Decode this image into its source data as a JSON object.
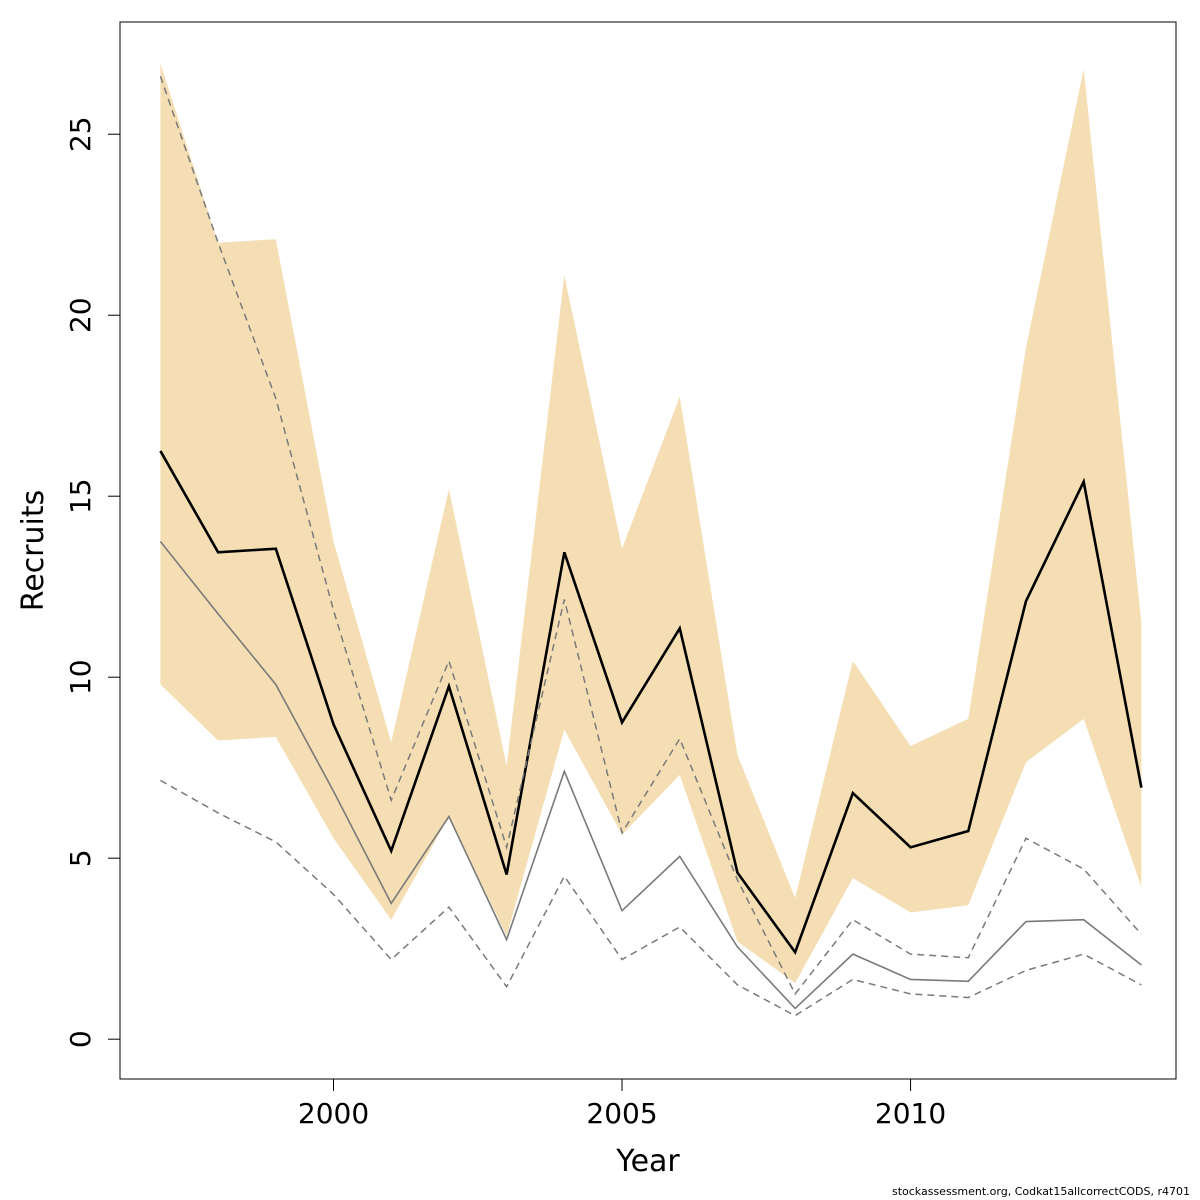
{
  "chart_data": {
    "type": "line",
    "xlabel": "Year",
    "ylabel": "Recruits",
    "xlim": [
      1996.3,
      2014.6
    ],
    "ylim": [
      -1.1,
      28.1
    ],
    "x_ticks": [
      2000,
      2005,
      2010
    ],
    "y_ticks": [
      0,
      5,
      10,
      15,
      20,
      25
    ],
    "grid": false,
    "band_color": "#f5deb3",
    "x": [
      1997,
      1998,
      1999,
      2000,
      2001,
      2002,
      2003,
      2004,
      2005,
      2006,
      2007,
      2008,
      2009,
      2010,
      2011,
      2012,
      2013,
      2014
    ],
    "series": [
      {
        "style": "band",
        "color": "#f5deb3",
        "lower": [
          9.8,
          8.25,
          8.35,
          5.55,
          3.3,
          6.15,
          2.85,
          8.55,
          5.65,
          7.3,
          2.7,
          1.55,
          4.45,
          3.5,
          3.7,
          7.65,
          8.85,
          4.2
        ],
        "upper": [
          26.95,
          22.0,
          22.1,
          13.75,
          8.2,
          15.2,
          7.55,
          21.1,
          13.55,
          17.75,
          7.85,
          3.9,
          10.45,
          8.1,
          8.85,
          19.1,
          26.8,
          11.5
        ]
      },
      {
        "style": "solid-thick",
        "color": "#000000",
        "values": [
          16.25,
          13.45,
          13.55,
          8.7,
          5.2,
          9.75,
          4.55,
          13.45,
          8.75,
          11.35,
          4.6,
          2.4,
          6.8,
          5.3,
          5.75,
          12.1,
          15.4,
          6.95
        ]
      },
      {
        "style": "solid-thin",
        "color": "#7a7a7a",
        "values": [
          13.75,
          11.75,
          9.8,
          6.85,
          3.75,
          6.15,
          2.75,
          7.4,
          3.55,
          5.05,
          2.55,
          0.85,
          2.35,
          1.65,
          1.6,
          3.25,
          3.3,
          2.05
        ]
      },
      {
        "style": "dashed",
        "color": "#7a7a7a",
        "values": [
          26.6,
          22.0,
          17.7,
          11.85,
          6.6,
          10.45,
          5.3,
          12.15,
          5.7,
          8.3,
          4.4,
          1.25,
          3.3,
          2.35,
          2.25,
          5.55,
          4.7,
          2.9
        ]
      },
      {
        "style": "dashed",
        "color": "#7a7a7a",
        "values": [
          7.15,
          6.25,
          5.45,
          4.0,
          2.2,
          3.65,
          1.45,
          4.5,
          2.2,
          3.1,
          1.5,
          0.65,
          1.65,
          1.25,
          1.15,
          1.9,
          2.35,
          1.5
        ]
      }
    ]
  },
  "footer_text": "stockassessment.org, Codkat15allcorrectCODS, r4701"
}
